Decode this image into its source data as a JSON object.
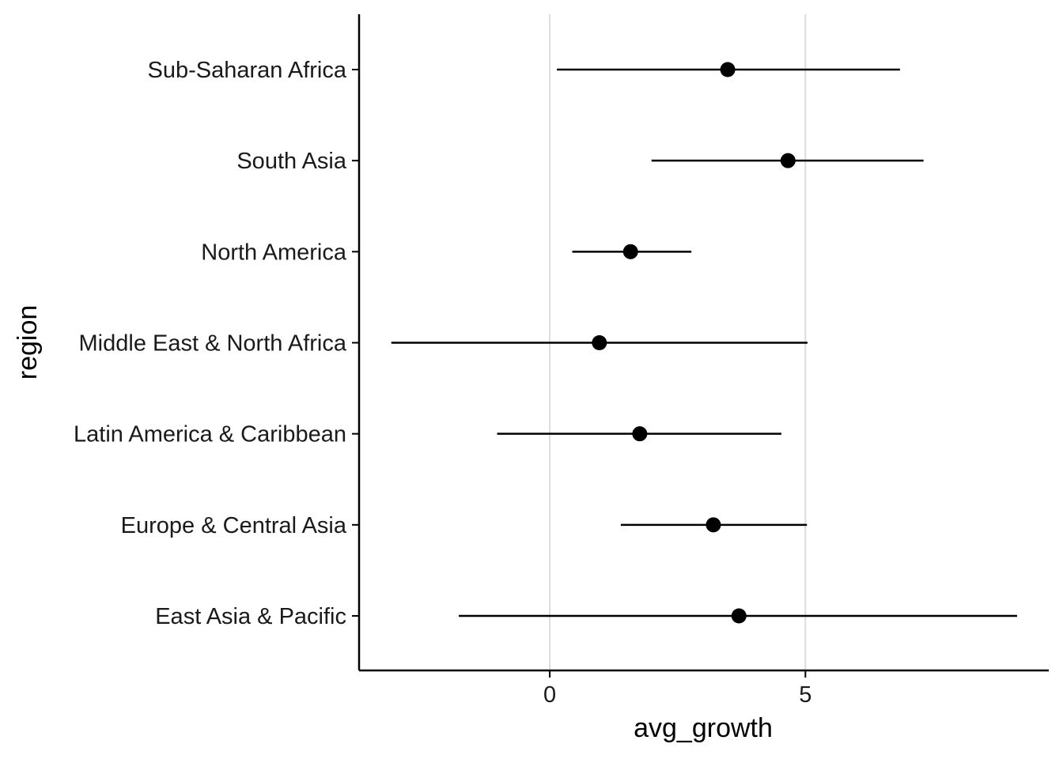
{
  "chart_data": {
    "type": "scatter",
    "title": "",
    "xlabel": "avg_growth",
    "ylabel": "region",
    "categories": [
      "East Asia & Pacific",
      "Europe & Central Asia",
      "Latin America & Caribbean",
      "Middle East & North Africa",
      "North America",
      "South Asia",
      "Sub-Saharan Africa"
    ],
    "x_ticks": [
      0,
      5
    ],
    "x_tick_labels": [
      "0",
      "5"
    ],
    "xlim": [
      -3.73,
      9.76
    ],
    "grid": "vertical major lines",
    "legend": "none",
    "series": [
      {
        "values": [
          3.7,
          3.2,
          1.76,
          0.97,
          1.58,
          4.66,
          3.48
        ],
        "lower": [
          -1.78,
          1.39,
          -1.03,
          -3.1,
          0.44,
          1.99,
          0.14
        ],
        "upper": [
          9.14,
          5.03,
          4.53,
          5.04,
          2.77,
          7.31,
          6.85
        ]
      }
    ],
    "colors": {
      "points": "#000000",
      "error_bars": "#000000",
      "axis": "#000000",
      "grid": "#dcdcdc",
      "tick_labels": "#1a1a1a"
    }
  }
}
